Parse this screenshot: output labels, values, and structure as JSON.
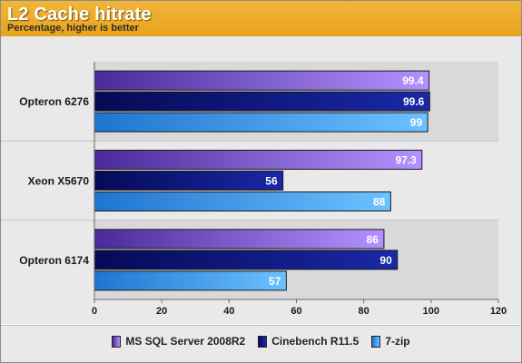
{
  "header": {
    "title": "L2 Cache hitrate",
    "subtitle": "Percentage, higher is better"
  },
  "chart_data": {
    "type": "bar",
    "orientation": "horizontal",
    "title": "L2 Cache hitrate",
    "subtitle": "Percentage, higher is better",
    "categories": [
      "Opteron 6276",
      "Xeon X5670",
      "Opteron 6174"
    ],
    "series": [
      {
        "name": "MS SQL Server 2008R2",
        "values": [
          99.4,
          97.3,
          86
        ],
        "color": "#8a58e0"
      },
      {
        "name": "Cinebench R11.5",
        "values": [
          99.6,
          56,
          90
        ],
        "color": "#0c1480"
      },
      {
        "name": "7-zip",
        "values": [
          99,
          88,
          57
        ],
        "color": "#3aa0f4"
      }
    ],
    "xlim": [
      0,
      120
    ],
    "xticks": [
      0,
      20,
      40,
      60,
      80,
      100,
      120
    ],
    "xlabel": "",
    "ylabel": "",
    "grid": false,
    "legend_position": "bottom",
    "background_color": "#e9e9e9",
    "header_color": "#eeaa28"
  }
}
